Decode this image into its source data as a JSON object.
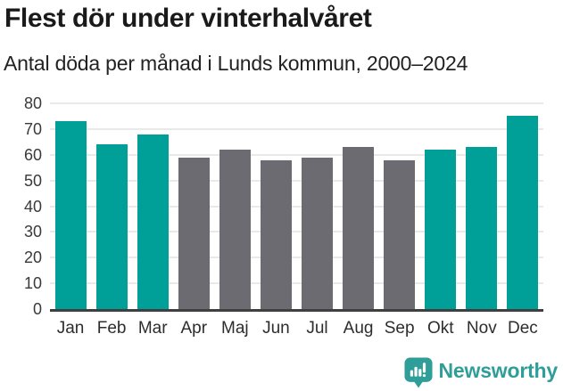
{
  "header": {
    "title": "Flest dör under vinterhalvåret",
    "subtitle": "Antal döda per månad i Lunds kommun, 2000–2024"
  },
  "chart_data": {
    "type": "bar",
    "title": "Flest dör under vinterhalvåret",
    "subtitle": "Antal döda per månad i Lunds kommun, 2000–2024",
    "categories": [
      "Jan",
      "Feb",
      "Mar",
      "Apr",
      "Maj",
      "Jun",
      "Jul",
      "Aug",
      "Sep",
      "Okt",
      "Nov",
      "Dec"
    ],
    "values": [
      73,
      64,
      68,
      59,
      62,
      58,
      59,
      63,
      58,
      62,
      63,
      75
    ],
    "bar_roles": [
      "highlight",
      "highlight",
      "highlight",
      "muted",
      "muted",
      "muted",
      "muted",
      "muted",
      "muted",
      "highlight",
      "highlight",
      "highlight"
    ],
    "palette": {
      "highlight": "#00a098",
      "muted": "#6c6b71"
    },
    "xlabel": "",
    "ylabel": "",
    "ylim": [
      0,
      80
    ],
    "ytick_step": 10,
    "grid": true,
    "gridline_color": "#e9e9e9",
    "axis_line_color": "#3f3f3f",
    "legend": "none"
  },
  "footer": {
    "brand": "Newsworthy",
    "brand_color": "#2f9e98",
    "logo_icon": "bar-chart-speech-bubble-icon"
  }
}
